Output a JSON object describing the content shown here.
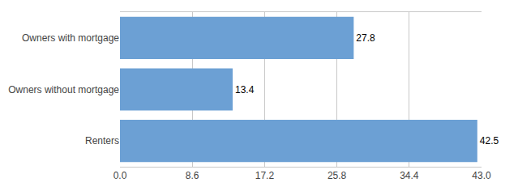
{
  "chart_data": {
    "type": "bar",
    "orientation": "horizontal",
    "categories": [
      "Renters",
      "Owners without mortgage",
      "Owners with mortgage"
    ],
    "values": [
      42.5,
      13.4,
      27.8
    ],
    "color": "#6CA0D4",
    "xlim": [
      0,
      43.0
    ],
    "xticks": [
      {
        "value": 0,
        "label": "0.0"
      },
      8.6,
      17.2,
      25.8,
      34.4,
      {
        "value": 43.0,
        "label": "43.0"
      }
    ],
    "grid": true,
    "data_labels": true
  }
}
